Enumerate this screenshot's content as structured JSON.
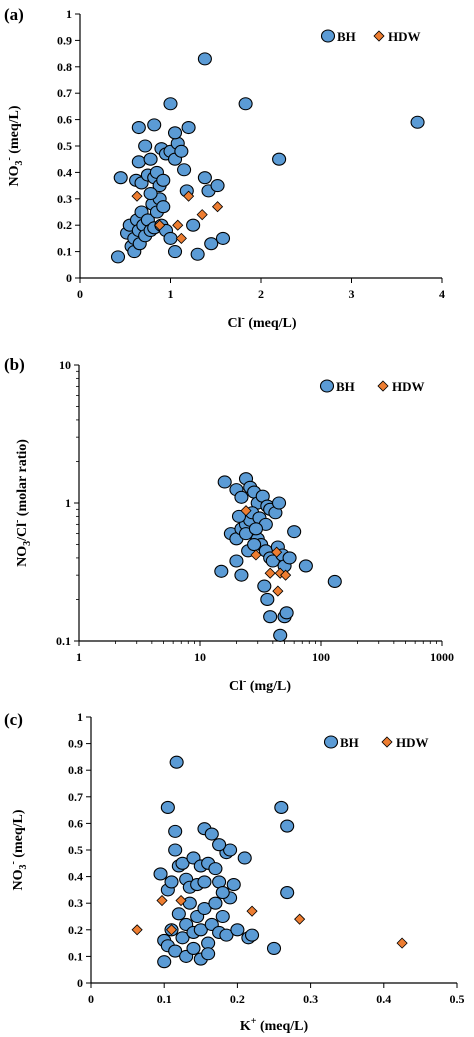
{
  "colors": {
    "bh": "#5b9bd5",
    "hdw": "#ed7d31",
    "axis": "#000000"
  },
  "chart_data": [
    {
      "type": "scatter",
      "panel_label": "(a)",
      "xlabel_main": "Cl",
      "xlabel_sup": "-",
      "xlabel_tail": " (meq/L)",
      "ylabel_main": "NO",
      "ylabel_sub": "3",
      "ylabel_sup": "-",
      "ylabel_tail": " (meq/L)",
      "xlim": [
        0,
        4
      ],
      "ylim": [
        0,
        1
      ],
      "xscale": "linear",
      "yscale": "linear",
      "xticks": [
        0,
        1,
        2,
        3,
        4
      ],
      "yticks": [
        0,
        0.1,
        0.2,
        0.3,
        0.4,
        0.5,
        0.6,
        0.7,
        0.8,
        0.9,
        1
      ],
      "xtick_labels": [
        "0",
        "1",
        "2",
        "3",
        "4"
      ],
      "ytick_labels": [
        "0",
        "0.1",
        "0.2",
        "0.3",
        "0.4",
        "0.5",
        "0.6",
        "0.7",
        "0.8",
        "0.9",
        "1"
      ],
      "legend_position": "top-right",
      "series": [
        {
          "name": "BH",
          "marker": "circle",
          "points": [
            [
              0.42,
              0.08
            ],
            [
              0.52,
              0.17
            ],
            [
              0.55,
              0.2
            ],
            [
              0.57,
              0.12
            ],
            [
              0.6,
              0.1
            ],
            [
              0.6,
              0.15
            ],
            [
              0.63,
              0.22
            ],
            [
              0.65,
              0.18
            ],
            [
              0.66,
              0.13
            ],
            [
              0.68,
              0.25
            ],
            [
              0.7,
              0.2
            ],
            [
              0.72,
              0.16
            ],
            [
              0.75,
              0.22
            ],
            [
              0.78,
              0.18
            ],
            [
              0.8,
              0.28
            ],
            [
              0.82,
              0.19
            ],
            [
              0.85,
              0.25
            ],
            [
              0.88,
              0.3
            ],
            [
              0.9,
              0.2
            ],
            [
              0.92,
              0.27
            ],
            [
              0.95,
              0.18
            ],
            [
              1.0,
              0.15
            ],
            [
              1.05,
              0.1
            ],
            [
              1.25,
              0.2
            ],
            [
              1.3,
              0.09
            ],
            [
              1.45,
              0.13
            ],
            [
              1.58,
              0.15
            ],
            [
              0.45,
              0.38
            ],
            [
              0.62,
              0.37
            ],
            [
              0.65,
              0.44
            ],
            [
              0.68,
              0.36
            ],
            [
              0.72,
              0.5
            ],
            [
              0.75,
              0.39
            ],
            [
              0.78,
              0.45
            ],
            [
              0.82,
              0.38
            ],
            [
              0.85,
              0.4
            ],
            [
              0.88,
              0.35
            ],
            [
              0.9,
              0.49
            ],
            [
              0.95,
              0.47
            ],
            [
              1.0,
              0.48
            ],
            [
              1.05,
              0.45
            ],
            [
              1.08,
              0.51
            ],
            [
              1.12,
              0.48
            ],
            [
              1.15,
              0.41
            ],
            [
              1.2,
              0.57
            ],
            [
              1.05,
              0.55
            ],
            [
              0.65,
              0.57
            ],
            [
              0.82,
              0.58
            ],
            [
              1.0,
              0.66
            ],
            [
              1.18,
              0.33
            ],
            [
              1.38,
              0.38
            ],
            [
              1.42,
              0.33
            ],
            [
              1.52,
              0.35
            ],
            [
              1.38,
              0.83
            ],
            [
              1.83,
              0.66
            ],
            [
              2.2,
              0.45
            ],
            [
              3.73,
              0.59
            ],
            [
              0.78,
              0.32
            ],
            [
              0.92,
              0.37
            ]
          ]
        },
        {
          "name": "HDW",
          "marker": "diamond",
          "points": [
            [
              0.63,
              0.31
            ],
            [
              0.88,
              0.2
            ],
            [
              1.08,
              0.2
            ],
            [
              1.12,
              0.15
            ],
            [
              1.2,
              0.31
            ],
            [
              1.35,
              0.24
            ],
            [
              1.52,
              0.27
            ]
          ]
        }
      ]
    },
    {
      "type": "scatter",
      "panel_label": "(b)",
      "xlabel_main": "Cl",
      "xlabel_sup": "-",
      "xlabel_tail": " (mg/L)",
      "ylabel_main": "NO",
      "ylabel_sub": "3",
      "ylabel_mid": "/Cl",
      "ylabel_sup": "-",
      "ylabel_tail": " (molar ratio)",
      "xlim": [
        1,
        1000
      ],
      "ylim": [
        0.1,
        10
      ],
      "xscale": "log",
      "yscale": "log",
      "xticks": [
        1,
        10,
        100,
        1000
      ],
      "yticks": [
        0.1,
        1,
        10
      ],
      "xtick_labels": [
        "1",
        "10",
        "100",
        "1000"
      ],
      "ytick_labels": [
        "0.1",
        "1",
        "10"
      ],
      "legend_position": "top-right",
      "series": [
        {
          "name": "BH",
          "marker": "circle",
          "points": [
            [
              16,
              1.42
            ],
            [
              20,
              1.25
            ],
            [
              22,
              1.1
            ],
            [
              24,
              1.5
            ],
            [
              26,
              1.3
            ],
            [
              28,
              1.2
            ],
            [
              30,
              1.0
            ],
            [
              33,
              1.12
            ],
            [
              36,
              0.95
            ],
            [
              38,
              0.9
            ],
            [
              42,
              0.85
            ],
            [
              45,
              1.0
            ],
            [
              18,
              0.6
            ],
            [
              20,
              0.55
            ],
            [
              22,
              0.65
            ],
            [
              24,
              0.7
            ],
            [
              26,
              0.75
            ],
            [
              28,
              0.6
            ],
            [
              30,
              0.55
            ],
            [
              32,
              0.5
            ],
            [
              35,
              0.45
            ],
            [
              38,
              0.4
            ],
            [
              40,
              0.38
            ],
            [
              44,
              0.48
            ],
            [
              48,
              0.42
            ],
            [
              50,
              0.35
            ],
            [
              55,
              0.4
            ],
            [
              60,
              0.62
            ],
            [
              75,
              0.35
            ],
            [
              130,
              0.27
            ],
            [
              15,
              0.32
            ],
            [
              20,
              0.38
            ],
            [
              22,
              0.3
            ],
            [
              25,
              0.45
            ],
            [
              28,
              0.5
            ],
            [
              34,
              0.25
            ],
            [
              36,
              0.2
            ],
            [
              38,
              0.15
            ],
            [
              46,
              0.11
            ],
            [
              50,
              0.15
            ],
            [
              52,
              0.16
            ],
            [
              24,
              0.6
            ],
            [
              27,
              0.85
            ],
            [
              31,
              0.78
            ],
            [
              35,
              0.7
            ],
            [
              29,
              0.65
            ],
            [
              21,
              0.8
            ]
          ]
        },
        {
          "name": "HDW",
          "marker": "diamond",
          "points": [
            [
              24,
              0.88
            ],
            [
              29,
              0.42
            ],
            [
              38,
              0.31
            ],
            [
              43,
              0.44
            ],
            [
              44,
              0.23
            ],
            [
              46,
              0.31
            ],
            [
              51,
              0.3
            ]
          ]
        }
      ]
    },
    {
      "type": "scatter",
      "panel_label": "(c)",
      "xlabel_main": "K",
      "xlabel_sup": "+",
      "xlabel_tail": " (meq/L)",
      "ylabel_main": "NO",
      "ylabel_sub": "3",
      "ylabel_sup": "-",
      "ylabel_tail": " (meq/L)",
      "xlim": [
        0,
        0.5
      ],
      "ylim": [
        0,
        1
      ],
      "xscale": "linear",
      "yscale": "linear",
      "xticks": [
        0,
        0.1,
        0.2,
        0.3,
        0.4,
        0.5
      ],
      "yticks": [
        0,
        0.1,
        0.2,
        0.3,
        0.4,
        0.5,
        0.6,
        0.7,
        0.8,
        0.9,
        1
      ],
      "xtick_labels": [
        "0",
        "0.1",
        "0.2",
        "0.3",
        "0.4",
        "0.5"
      ],
      "ytick_labels": [
        "0",
        "0.1",
        "0.2",
        "0.3",
        "0.4",
        "0.5",
        "0.6",
        "0.7",
        "0.8",
        "0.9",
        "1"
      ],
      "legend_position": "top-right",
      "series": [
        {
          "name": "BH",
          "marker": "circle",
          "points": [
            [
              0.1,
              0.08
            ],
            [
              0.1,
              0.16
            ],
            [
              0.105,
              0.14
            ],
            [
              0.11,
              0.2
            ],
            [
              0.115,
              0.12
            ],
            [
              0.12,
              0.26
            ],
            [
              0.125,
              0.17
            ],
            [
              0.13,
              0.22
            ],
            [
              0.13,
              0.1
            ],
            [
              0.135,
              0.3
            ],
            [
              0.14,
              0.19
            ],
            [
              0.14,
              0.13
            ],
            [
              0.145,
              0.25
            ],
            [
              0.15,
              0.09
            ],
            [
              0.15,
              0.2
            ],
            [
              0.155,
              0.28
            ],
            [
              0.16,
              0.15
            ],
            [
              0.165,
              0.22
            ],
            [
              0.17,
              0.3
            ],
            [
              0.175,
              0.19
            ],
            [
              0.18,
              0.25
            ],
            [
              0.185,
              0.18
            ],
            [
              0.19,
              0.32
            ],
            [
              0.2,
              0.2
            ],
            [
              0.215,
              0.17
            ],
            [
              0.095,
              0.41
            ],
            [
              0.105,
              0.35
            ],
            [
              0.11,
              0.38
            ],
            [
              0.115,
              0.5
            ],
            [
              0.12,
              0.44
            ],
            [
              0.125,
              0.45
            ],
            [
              0.13,
              0.39
            ],
            [
              0.135,
              0.36
            ],
            [
              0.14,
              0.47
            ],
            [
              0.145,
              0.37
            ],
            [
              0.15,
              0.44
            ],
            [
              0.155,
              0.38
            ],
            [
              0.16,
              0.45
            ],
            [
              0.17,
              0.43
            ],
            [
              0.175,
              0.38
            ],
            [
              0.18,
              0.34
            ],
            [
              0.185,
              0.49
            ],
            [
              0.19,
              0.5
            ],
            [
              0.195,
              0.37
            ],
            [
              0.21,
              0.47
            ],
            [
              0.115,
              0.57
            ],
            [
              0.155,
              0.58
            ],
            [
              0.165,
              0.56
            ],
            [
              0.175,
              0.52
            ],
            [
              0.105,
              0.66
            ],
            [
              0.26,
              0.66
            ],
            [
              0.268,
              0.59
            ],
            [
              0.268,
              0.34
            ],
            [
              0.22,
              0.18
            ],
            [
              0.25,
              0.13
            ],
            [
              0.117,
              0.83
            ],
            [
              0.16,
              0.11
            ]
          ]
        },
        {
          "name": "HDW",
          "marker": "diamond",
          "points": [
            [
              0.063,
              0.2
            ],
            [
              0.097,
              0.31
            ],
            [
              0.11,
              0.2
            ],
            [
              0.123,
              0.31
            ],
            [
              0.22,
              0.27
            ],
            [
              0.285,
              0.24
            ],
            [
              0.425,
              0.15
            ]
          ]
        }
      ]
    }
  ]
}
